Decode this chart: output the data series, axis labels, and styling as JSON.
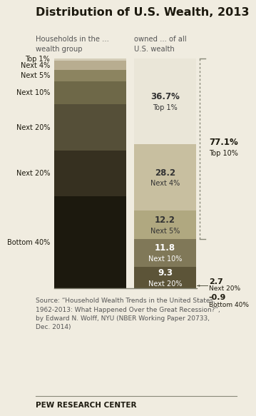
{
  "title": "Distribution of U.S. Wealth, 2013",
  "left_header_line1": "Households in the ...",
  "left_header_line2": "wealth group",
  "right_header_line1": "owned ... of all",
  "right_header_line2": "U.S. wealth",
  "left_bar_segments": [
    {
      "label": "Top 1%",
      "value": 1,
      "color": "#d4cdb8"
    },
    {
      "label": "Next 4%",
      "value": 4,
      "color": "#b8ad90"
    },
    {
      "label": "Next 5%",
      "value": 5,
      "color": "#8c8460"
    },
    {
      "label": "Next 10%",
      "value": 10,
      "color": "#6e6848"
    },
    {
      "label": "Next 20%",
      "value": 20,
      "color": "#554f38"
    },
    {
      "label": "Next 20%",
      "value": 20,
      "color": "#363020"
    },
    {
      "label": "Bottom 40%",
      "value": 40,
      "color": "#1c190e"
    }
  ],
  "right_bar_segments": [
    {
      "label_bold": "36.7%",
      "label_normal": "Top 1%",
      "value": 36.7,
      "color": "#eae6d8",
      "text_color": "#333333"
    },
    {
      "label_bold": "28.2",
      "label_normal": "Next 4%",
      "value": 28.2,
      "color": "#c8bfa0",
      "text_color": "#333333"
    },
    {
      "label_bold": "12.2",
      "label_normal": "Next 5%",
      "value": 12.2,
      "color": "#b0a880",
      "text_color": "#333333"
    },
    {
      "label_bold": "11.8",
      "label_normal": "Next 10%",
      "value": 11.8,
      "color": "#807858",
      "text_color": "#ffffff"
    },
    {
      "label_bold": "9.3",
      "label_normal": "Next 20%",
      "value": 9.3,
      "color": "#5c5438",
      "text_color": "#ffffff"
    }
  ],
  "outside_annotations": [
    {
      "bold": "2.7",
      "normal": "Next 20%",
      "y_ref": "bar_bottom"
    },
    {
      "bold": "-0.9",
      "normal": "Bottom 40%",
      "y_ref": "below_bottom"
    }
  ],
  "dotted_line_pct": 77.1,
  "dotted_spans_segs": 3,
  "annotation_bold": "77.1%",
  "annotation_normal": "Top 10%",
  "source_text": "Source: “Household Wealth Trends in the United States,\n1962-2013: What Happened Over the Great Recession?”,\nby Edward N. Wolff, NYU (NBER Working Paper 20733,\nDec. 2014)",
  "footer": "PEW RESEARCH CENTER",
  "bg_color": "#f0ece0",
  "text_dark": "#1c190e",
  "text_mid": "#555555"
}
